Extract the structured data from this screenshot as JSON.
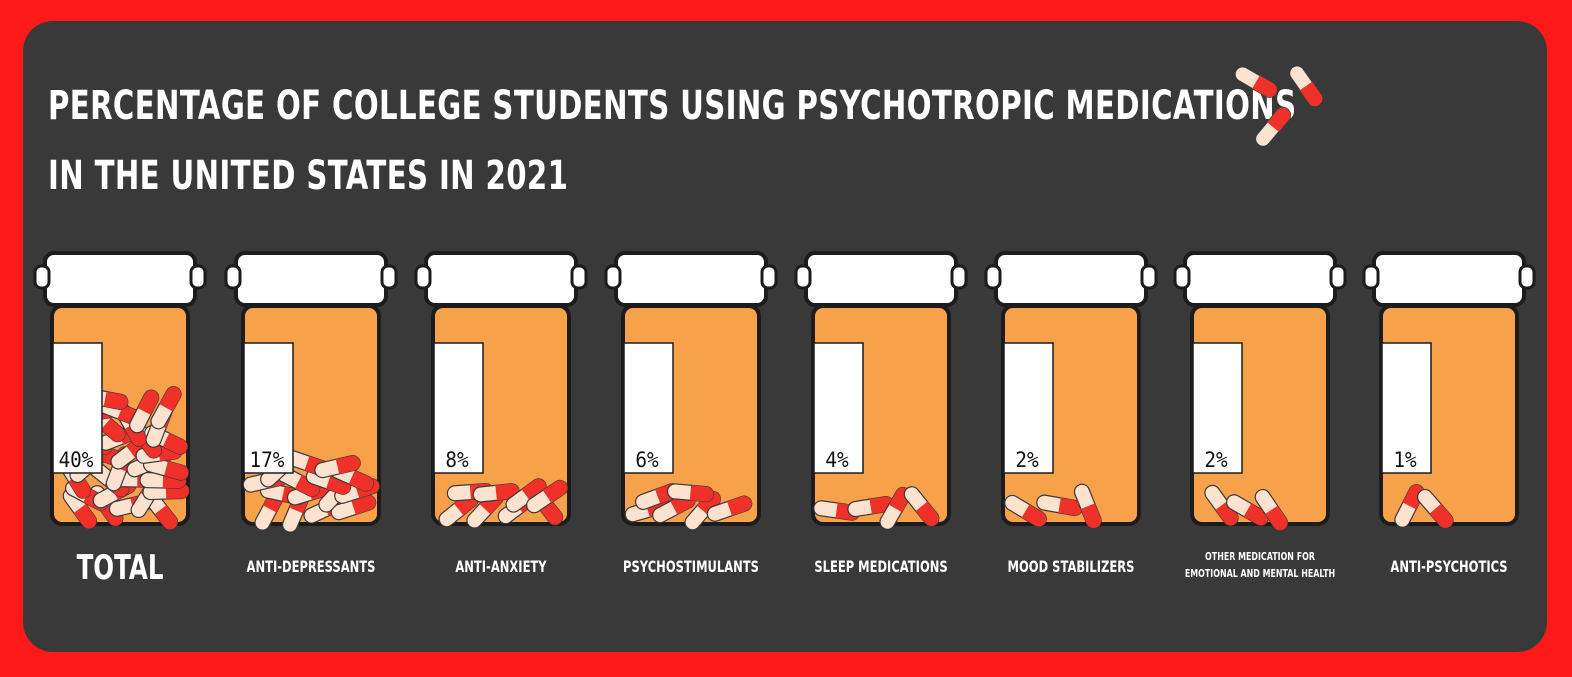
{
  "colors": {
    "border": "#ff1a1a",
    "panel": "#3a393a",
    "jar_fill": "#f7a24a",
    "pill_red": "#f0312a",
    "pill_cream": "#fde2cf"
  },
  "chart_data": {
    "type": "bar",
    "title": "PERCENTAGE OF COLLEGE STUDENTS USING PSYCHOTROPIC MEDICATIONS IN THE UNITED STATES IN 2021",
    "title_line1": "PERCENTAGE OF COLLEGE STUDENTS USING PSYCHOTROPIC MEDICATIONS",
    "title_line2": "IN THE UNITED STATES IN 2021",
    "categories": [
      "TOTAL",
      "ANTI-DEPRESSANTS",
      "ANTI-ANXIETY",
      "PSYCHOSTIMULANTS",
      "SLEEP MEDICATIONS",
      "MOOD STABILIZERS",
      "OTHER MEDICATION FOR EMOTIONAL AND MENTAL HEALTH",
      "ANTI-PSYCHOTICS"
    ],
    "values": [
      40,
      17,
      8,
      6,
      4,
      2,
      2,
      1
    ],
    "value_labels": [
      "40%",
      "17%",
      "8%",
      "6%",
      "4%",
      "2%",
      "2%",
      "1%"
    ],
    "unit": "%"
  }
}
